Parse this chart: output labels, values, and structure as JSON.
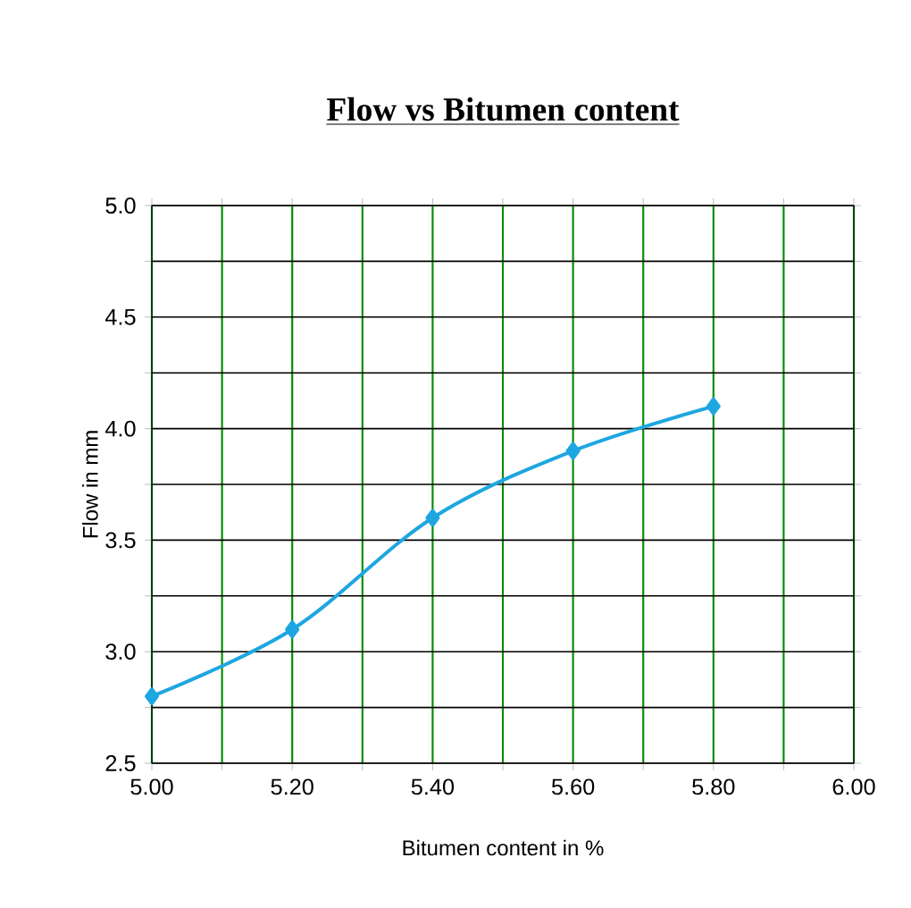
{
  "chart_data": {
    "type": "line",
    "title": "Flow vs Bitumen content",
    "xlabel": "Bitumen content in %",
    "ylabel": "Flow in mm",
    "x": [
      5.0,
      5.2,
      5.4,
      5.6,
      5.8
    ],
    "series": [
      {
        "color": "#1ea6e0",
        "values": [
          2.8,
          3.1,
          3.6,
          3.9,
          4.1
        ]
      }
    ],
    "marker": "diamond",
    "grid": true,
    "xlim": [
      5.0,
      6.0
    ],
    "xticks": [
      {
        "value": 5.0,
        "label": "5.00"
      },
      {
        "value": 5.1,
        "label": null
      },
      {
        "value": 5.2,
        "label": "5.20"
      },
      {
        "value": 5.3,
        "label": null
      },
      {
        "value": 5.4,
        "label": "5.40"
      },
      {
        "value": 5.5,
        "label": null
      },
      {
        "value": 5.6,
        "label": "5.60"
      },
      {
        "value": 5.7,
        "label": null
      },
      {
        "value": 5.8,
        "label": "5.80"
      },
      {
        "value": 5.9,
        "label": null
      },
      {
        "value": 6.0,
        "label": "6.00"
      }
    ],
    "ylim": [
      2.5,
      5.0
    ],
    "yticks": [
      2.5,
      {
        "value": 2.75,
        "label": null
      },
      {
        "value": 3.0,
        "label": "3.0"
      },
      {
        "value": 3.25,
        "label": null
      },
      3.5,
      {
        "value": 3.75,
        "label": null
      },
      {
        "value": 4.0,
        "label": "4.0"
      },
      {
        "value": 4.25,
        "label": null
      },
      4.5,
      {
        "value": 4.75,
        "label": null
      },
      {
        "value": 5.0,
        "label": "5.0"
      }
    ]
  }
}
